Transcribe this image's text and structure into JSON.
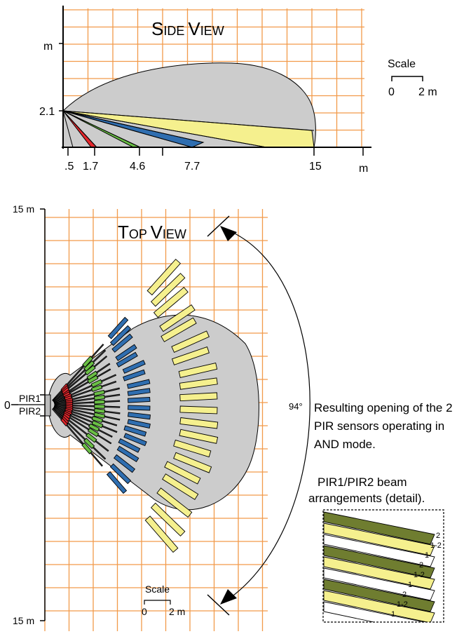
{
  "side_view": {
    "title_first": "S",
    "title_rest": "IDE ",
    "title_first2": "V",
    "title_rest2": "IEW",
    "y_unit": "m",
    "height_label": "2.1",
    "x_ticks": [
      ".5",
      "1.7",
      "4.6",
      "7.7",
      "15"
    ],
    "x_unit": "m",
    "scale_label": "Scale",
    "scale_start": "0",
    "scale_end": "2 m"
  },
  "top_view": {
    "title_first": "T",
    "title_rest": "OP ",
    "title_first2": "V",
    "title_rest2": "IEW",
    "top_label": "15 m",
    "bottom_label": "15 m",
    "zero_label": "0",
    "pir1_label": "PIR1",
    "pir2_label": "PIR2",
    "angle_label": "94°",
    "scale_label": "Scale",
    "scale_start": "0",
    "scale_end": "2 m"
  },
  "caption": {
    "line1": "Resulting opening of the 2",
    "line2": "PIR sensors operating in",
    "line3": "AND mode."
  },
  "detail": {
    "title_line1": "PIR1/PIR2 beam",
    "title_line2": "arrangements (detail).",
    "labels": [
      "2",
      "1-2",
      "1",
      "2",
      "1-2",
      "1",
      "2",
      "1-2",
      "1"
    ]
  },
  "colors": {
    "grid": "#f29a4a",
    "coverage": "#cccccc",
    "yellow": "#f5f08e",
    "blue": "#2f6eb0",
    "green": "#6abf45",
    "red": "#e3262b",
    "olive": "#6f7d30"
  }
}
